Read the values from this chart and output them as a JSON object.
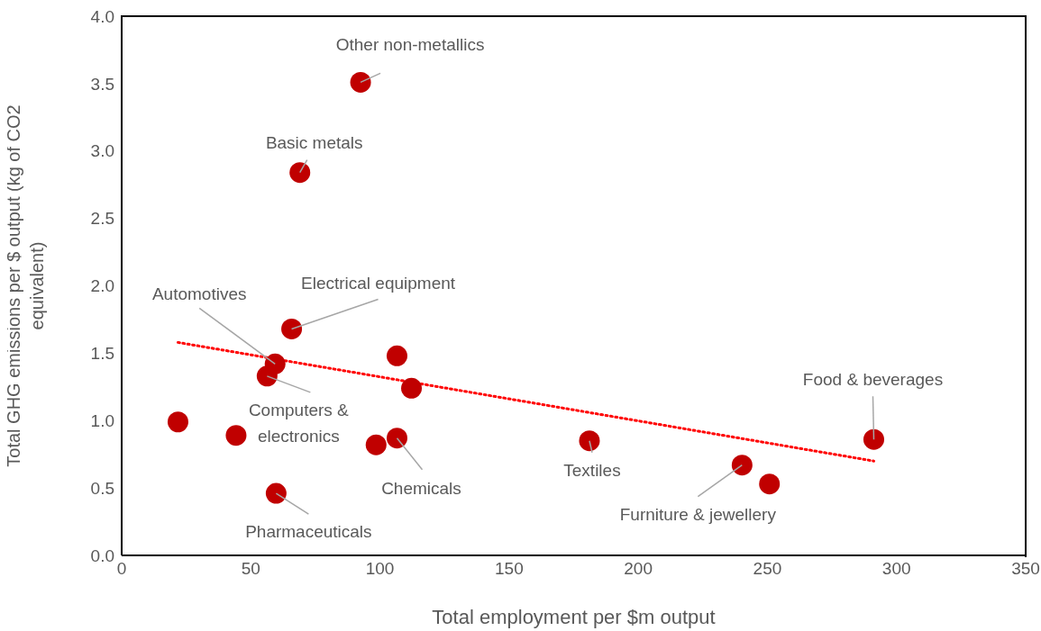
{
  "chart_data": {
    "type": "scatter",
    "xlabel": "Total employment per $m output",
    "ylabel": "Total GHG emissions per $ output (kg of CO2 equivalent)",
    "xlim": [
      0,
      350
    ],
    "xticks": [
      0,
      50,
      100,
      150,
      200,
      250,
      300,
      350
    ],
    "ylim": [
      0,
      4
    ],
    "yticks": [
      {
        "value": 0,
        "label": "0.0"
      },
      {
        "value": 0.5,
        "label": "0.5"
      },
      {
        "value": 1,
        "label": "1.0"
      },
      {
        "value": 1.5,
        "label": "1.5"
      },
      {
        "value": 2,
        "label": "2.0"
      },
      {
        "value": 2.5,
        "label": "2.5"
      },
      {
        "value": 3,
        "label": "3.0"
      },
      {
        "value": 3.5,
        "label": "3.5"
      },
      {
        "value": 4,
        "label": "4.0"
      }
    ],
    "grid": false,
    "legend": false,
    "marker": "circle",
    "series": [
      {
        "type": "scatter",
        "color": "#c00000",
        "x": [
          92.5,
          69,
          65.8,
          59.4,
          56.3,
          106.6,
          112.2,
          21.8,
          44.3,
          98.5,
          106.6,
          59.8,
          181.1,
          240.2,
          250.8,
          291.2
        ],
        "values": [
          3.51,
          2.84,
          1.68,
          1.42,
          1.33,
          1.48,
          1.24,
          0.99,
          0.89,
          0.82,
          0.87,
          0.46,
          0.85,
          0.67,
          0.53,
          0.86
        ]
      },
      {
        "type": "line",
        "color": "#ff0000",
        "line_style": "dotted",
        "marker": "none",
        "x": [
          21.8,
          291.2
        ],
        "values": [
          1.58,
          0.7
        ]
      }
    ],
    "annotations": [
      {
        "text": "Other non-metallics",
        "x": 92.5,
        "y": 3.51
      },
      {
        "text": "Basic metals",
        "x": 69,
        "y": 2.84
      },
      {
        "text": "Electrical equipment",
        "x": 65.8,
        "y": 1.68
      },
      {
        "text": "Automotives",
        "x": 59.4,
        "y": 1.42
      },
      {
        "text": "Computers & electronics",
        "x": 56.3,
        "y": 1.33
      },
      {
        "text": "Chemicals",
        "x": 106.6,
        "y": 0.87
      },
      {
        "text": "Pharmaceuticals",
        "x": 59.8,
        "y": 0.46
      },
      {
        "text": "Textiles",
        "x": 181.1,
        "y": 0.85
      },
      {
        "text": "Furniture & jewellery",
        "x": 240.2,
        "y": 0.67
      },
      {
        "text": "Food & beverages",
        "x": 291.2,
        "y": 0.86
      }
    ]
  }
}
